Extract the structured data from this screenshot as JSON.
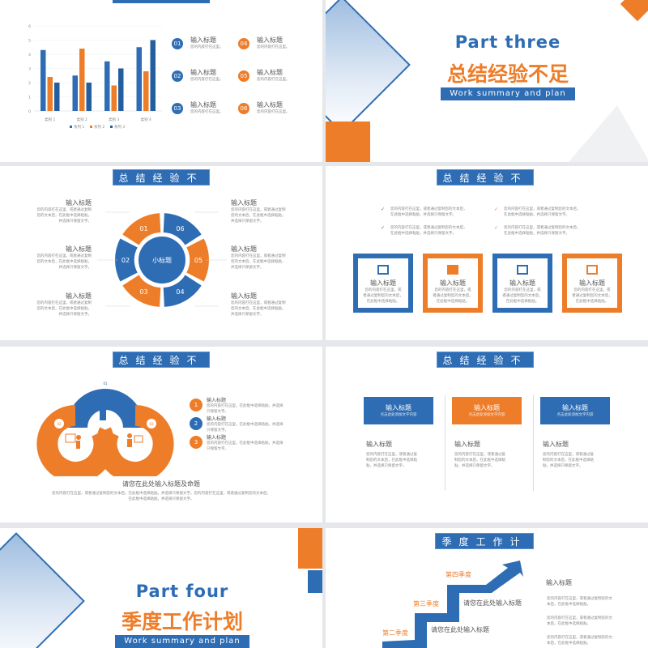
{
  "colors": {
    "blue": "#2e6db4",
    "orange": "#ee7d2a",
    "darkblue": "#255e9e"
  },
  "placeholder_title": "输入标题",
  "short_text": "您的内容打在这里。",
  "body_text": [
    "您的内容打在这里，或者通过复制",
    "您的文本后，在此框中选择粘贴，",
    "并选择只保留文字。"
  ],
  "slide1": {
    "chart_data": {
      "type": "bar",
      "categories": [
        "类别 1",
        "类别 2",
        "类别 3",
        "类别 4"
      ],
      "series": [
        {
          "name": "系列 1",
          "values": [
            4.3,
            2.5,
            3.5,
            4.5
          ],
          "color": "#2e6db4"
        },
        {
          "name": "系列 2",
          "values": [
            2.4,
            4.4,
            1.8,
            2.8
          ],
          "color": "#ee7d2a"
        },
        {
          "name": "系列 3",
          "values": [
            2,
            2,
            3,
            5
          ],
          "color": "#255e9e"
        }
      ],
      "ylim": [
        0,
        6
      ],
      "yticks": [
        "0",
        "1",
        "2",
        "3",
        "4",
        "5",
        "6"
      ],
      "grid": true,
      "legend": "bottom"
    },
    "items": [
      {
        "num": "01",
        "color": "blue"
      },
      {
        "num": "02",
        "color": "blue"
      },
      {
        "num": "03",
        "color": "blue"
      },
      {
        "num": "04",
        "color": "orange"
      },
      {
        "num": "05",
        "color": "orange"
      },
      {
        "num": "06",
        "color": "orange"
      }
    ]
  },
  "slide2": {
    "part": "Part three",
    "title": "总结经验不足",
    "subtitle": "Work summary and plan"
  },
  "slide3": {
    "banner": "总结经验不足",
    "center": "小标题",
    "segments": [
      "01",
      "02",
      "03",
      "04",
      "05",
      "06"
    ]
  },
  "slide4": {
    "banner": "总结经验不足",
    "bullets": [
      "您的内容打在这里，或者通过复制您的文本后，",
      "在此框中选择粘贴，并选择只保留文字。"
    ],
    "box_text": [
      "您的内容打在这里，或",
      "者通过复制您的文本后，",
      "在此框中选择粘贴。"
    ],
    "boxes": [
      "edit-board-icon",
      "list-icon",
      "pen-square-icon",
      "notepad-icon"
    ]
  },
  "slide5": {
    "banner": "总结经验不足",
    "items": [
      "1",
      "2",
      "3"
    ],
    "item_text": [
      "您的内容打在这里，在此框中选择粘贴，并选择",
      "只保留文字。"
    ],
    "ring_labels": [
      "01",
      "02",
      "03"
    ],
    "footer_title": "请您在此处输入标题及命题",
    "footer_text": [
      "您的内容打在这里，或者通过复制您的文本后，在此框中选择粘贴，并选择只保留文字。您的内容打在这里，或者通过复制您的文本后，",
      "在此框中选择粘贴，并选择只保留文字。"
    ]
  },
  "slide6": {
    "banner": "总结经验不足",
    "card_sub": "点击此处添加文字内容",
    "text": [
      "您的内容打在这里，或者通过复",
      "制您的文本后，在此框中选择粘",
      "贴，并选择只保留文字。"
    ]
  },
  "slide7": {
    "part": "Part four",
    "title": "季度工作计划",
    "subtitle": "Work summary and plan"
  },
  "slide8": {
    "banner": "季度工作计划",
    "q4": "第四季度",
    "q3": "第三季度",
    "q2": "第二季度",
    "step_title": "请您在此处输入标题",
    "side_text": [
      "您的内容打在这里，或者通过复制您的文",
      "本后，在此框中选择粘贴。"
    ]
  }
}
